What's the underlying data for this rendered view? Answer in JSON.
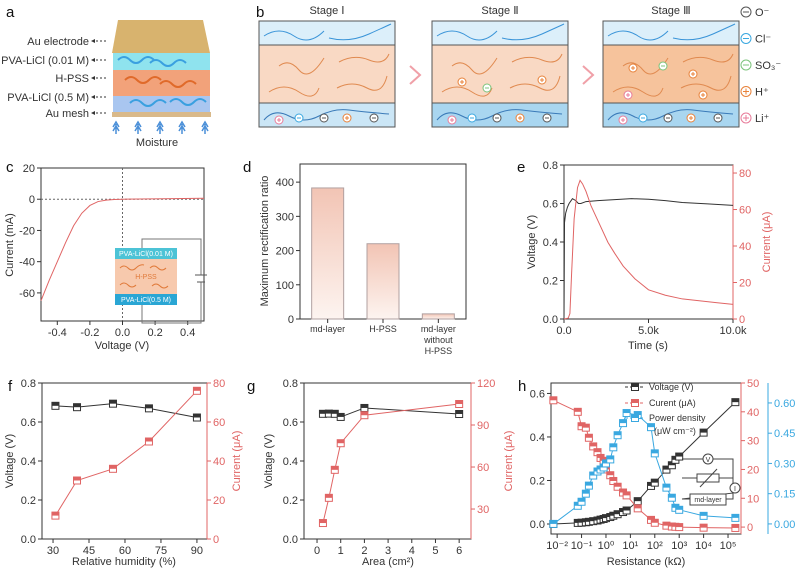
{
  "panel_labels": [
    "a",
    "b",
    "c",
    "d",
    "e",
    "f",
    "g",
    "h"
  ],
  "colors": {
    "voltage": "#333333",
    "current": "#e06464",
    "power": "#3aa8e0",
    "cyan": "#8fe3ee",
    "peach": "#f9d9c4",
    "blue": "#b9d8f2",
    "gold": "#d8b36e"
  },
  "panel_a": {
    "labels": [
      "Au electrode",
      "PVA-LiCl (0.01 M)",
      "H-PSS",
      "PVA-LiCl (0.5 M)",
      "Au mesh"
    ],
    "moisture": "Moisture"
  },
  "panel_b": {
    "stages": [
      "Stage Ⅰ",
      "Stage Ⅱ",
      "Stage Ⅲ"
    ],
    "legend": [
      {
        "label": "O⁻",
        "sign": "-",
        "color": "#555555"
      },
      {
        "label": "Cl⁻",
        "sign": "-",
        "color": "#3aa8e0"
      },
      {
        "label": "SO₃⁻",
        "sign": "-",
        "color": "#7cc47c"
      },
      {
        "label": "H⁺",
        "sign": "+",
        "color": "#e8823a"
      },
      {
        "label": "Li⁺",
        "sign": "+",
        "color": "#e87c9a"
      }
    ]
  },
  "chart_data": [
    {
      "panel": "c",
      "type": "line",
      "xlabel": "Voltage (V)",
      "ylabel": "Current (mA)",
      "xlim": [
        -0.5,
        0.5
      ],
      "ylim": [
        -78,
        20
      ],
      "xticks": [
        -0.4,
        -0.2,
        0,
        0.2,
        0.4
      ],
      "xtick_labels": [
        "-0.4",
        "-0.2",
        "0.0",
        "0.2",
        "0.4"
      ],
      "yticks": [
        20,
        0,
        -20,
        -40,
        -60
      ],
      "ytick_labels": [
        "20",
        "0",
        "-20",
        "-40",
        "-60"
      ],
      "series": [
        {
          "name": "I-V curve",
          "x": [
            -0.5,
            -0.45,
            -0.4,
            -0.35,
            -0.3,
            -0.25,
            -0.2,
            -0.15,
            -0.1,
            -0.05,
            0,
            0.25,
            0.5
          ],
          "y": [
            -65,
            -52,
            -40,
            -28,
            -17,
            -9,
            -4,
            -1.5,
            -0.6,
            -0.2,
            0,
            0.3,
            0.6
          ]
        }
      ],
      "inset_labels": [
        "PVA-LiCl(0.01 M)",
        "H-PSS",
        "PVA-LiCl(0.5 M)"
      ]
    },
    {
      "panel": "d",
      "type": "bar",
      "ylabel": "Maximum rectification ratio",
      "categories": [
        [
          "md-layer"
        ],
        [
          "H-PSS"
        ],
        [
          "md-layer",
          "without",
          "H-PSS"
        ]
      ],
      "values": [
        383,
        220,
        15
      ],
      "ylim": [
        0,
        453
      ],
      "yticks": [
        0,
        100,
        200,
        300,
        400
      ],
      "ytick_labels": [
        "0",
        "100",
        "200",
        "300",
        "400"
      ]
    },
    {
      "panel": "e",
      "type": "line",
      "xlabel": "Time (s)",
      "ylabel": "Voltage (V)",
      "ylabel_right": "Current (μA)",
      "xlim": [
        0,
        10000
      ],
      "ylim": [
        0,
        0.8
      ],
      "ylim_right": [
        0,
        84.4
      ],
      "xticks": [
        0,
        5000,
        10000
      ],
      "xtick_labels": [
        "0.0",
        "5.0k",
        "10.0k"
      ],
      "yticks": [
        0,
        0.2,
        0.4,
        0.6,
        0.8
      ],
      "ytick_labels": [
        "0.0",
        "0.2",
        "0.4",
        "0.6",
        "0.8"
      ],
      "yticks_right": [
        0,
        20,
        40,
        60,
        80
      ],
      "ytick_labels_right": [
        "0",
        "20",
        "40",
        "60",
        "80"
      ],
      "series": [
        {
          "name": "Voltage",
          "axis": "left",
          "x": [
            0,
            30,
            100,
            200,
            300,
            500,
            700,
            850,
            1000,
            1300,
            2000,
            3000,
            4000,
            5000,
            6000,
            7000,
            8500,
            10000
          ],
          "y": [
            0,
            0.5,
            0.55,
            0.58,
            0.6,
            0.625,
            0.615,
            0.6,
            0.6,
            0.61,
            0.615,
            0.62,
            0.625,
            0.622,
            0.615,
            0.605,
            0.598,
            0.59
          ]
        },
        {
          "name": "Current",
          "axis": "right",
          "x": [
            0,
            250,
            350,
            450,
            600,
            800,
            950,
            1100,
            1300,
            1600,
            2000,
            2600,
            3000,
            3500,
            4200,
            5000,
            6000,
            7000,
            8000,
            9000,
            10000
          ],
          "y": [
            0,
            0.5,
            3,
            25,
            55,
            72,
            76,
            74,
            70,
            62,
            54,
            42,
            36,
            29,
            22,
            16,
            13,
            11,
            10,
            9,
            8
          ]
        }
      ]
    },
    {
      "panel": "f",
      "type": "line",
      "xlabel": "Relative humidity (%)",
      "ylabel": "Voltage (V)",
      "ylabel_right": "Current (μA)",
      "xlim": [
        25.4,
        94.2
      ],
      "ylim": [
        0,
        0.8
      ],
      "ylim_right": [
        0,
        80
      ],
      "xticks": [
        30,
        45,
        60,
        75,
        90
      ],
      "xtick_labels": [
        "30",
        "45",
        "60",
        "75",
        "90"
      ],
      "yticks": [
        0,
        0.2,
        0.4,
        0.6,
        0.8
      ],
      "ytick_labels": [
        "0.0",
        "0.2",
        "0.4",
        "0.6",
        "0.8"
      ],
      "yticks_right": [
        0,
        20,
        40,
        60,
        80
      ],
      "ytick_labels_right": [
        "0",
        "20",
        "40",
        "60",
        "80"
      ],
      "series": [
        {
          "name": "Voltage",
          "axis": "left",
          "x": [
            31,
            40,
            55,
            70,
            90
          ],
          "y": [
            0.683,
            0.676,
            0.694,
            0.67,
            0.623
          ]
        },
        {
          "name": "Current",
          "axis": "right",
          "x": [
            31,
            40,
            55,
            70,
            90
          ],
          "y": [
            12,
            30,
            36,
            50,
            76
          ]
        }
      ]
    },
    {
      "panel": "g",
      "type": "line",
      "xlabel": "Area (cm²)",
      "ylabel": "Voltage (V)",
      "ylabel_right": "Current (μA)",
      "xlim": [
        -0.55,
        6.5
      ],
      "ylim": [
        0,
        0.8
      ],
      "ylim_right": [
        8.6,
        120
      ],
      "xticks": [
        0,
        1,
        2,
        3,
        4,
        5,
        6
      ],
      "xtick_labels": [
        "0",
        "1",
        "2",
        "3",
        "4",
        "5",
        "6"
      ],
      "yticks": [
        0,
        0.2,
        0.4,
        0.6,
        0.8
      ],
      "ytick_labels": [
        "0.0",
        "0.2",
        "0.4",
        "0.6",
        "0.8"
      ],
      "yticks_right": [
        30,
        60,
        90,
        120
      ],
      "ytick_labels_right": [
        "30",
        "60",
        "90",
        "120"
      ],
      "series": [
        {
          "name": "Voltage",
          "axis": "left",
          "x": [
            0.25,
            0.5,
            0.75,
            1,
            2,
            6
          ],
          "y": [
            0.642,
            0.643,
            0.642,
            0.626,
            0.672,
            0.641
          ]
        },
        {
          "name": "Current",
          "axis": "right",
          "x": [
            0.25,
            0.5,
            0.75,
            1,
            2,
            6
          ],
          "y": [
            20,
            38,
            58,
            77,
            97,
            105
          ]
        }
      ]
    },
    {
      "panel": "h",
      "type": "line",
      "xlabel": "Resistance (kΩ)",
      "xscale": "log",
      "xlim": [
        0.0056,
        340000
      ],
      "ylim": [
        -0.046,
        0.648
      ],
      "ylim_right": [
        -2.4,
        50
      ],
      "ylim_right2": [
        -0.05,
        0.699
      ],
      "xticks": [
        0.01,
        0.1,
        1,
        10,
        100,
        1000,
        10000,
        100000
      ],
      "xtick_labels": [
        "10⁻²",
        "10⁻¹",
        "10⁰",
        "10¹",
        "10²",
        "10³",
        "10⁴",
        "10⁵"
      ],
      "yticks": [
        0,
        0.2,
        0.4,
        0.6
      ],
      "ytick_labels": [
        "0.0",
        "0.2",
        "0.4",
        "0.6"
      ],
      "yticks_right": [
        0,
        10,
        20,
        30,
        40,
        50
      ],
      "ytick_labels_right": [
        "0",
        "10",
        "20",
        "30",
        "40",
        "50"
      ],
      "yticks_right2": [
        0,
        0.15,
        0.3,
        0.45,
        0.6
      ],
      "ytick_labels_right2": [
        "0.00",
        "0.15",
        "0.30",
        "0.45",
        "0.60"
      ],
      "legend": [
        "Voltage (V)",
        "Curent (μA)",
        "Power density",
        "(μW cm⁻²)"
      ],
      "inset_labels": [
        "V",
        "I",
        "md-layer"
      ],
      "series": [
        {
          "name": "Voltage (V)",
          "axis": "left",
          "x": [
            0.007,
            0.07,
            0.1,
            0.15,
            0.2,
            0.3,
            0.45,
            0.6,
            0.8,
            1,
            1.5,
            2,
            3,
            5,
            7,
            20,
            70,
            100,
            300,
            500,
            700,
            1000,
            10000,
            200000
          ],
          "y": [
            0,
            0.005,
            0.006,
            0.008,
            0.01,
            0.013,
            0.016,
            0.02,
            0.023,
            0.027,
            0.032,
            0.038,
            0.045,
            0.055,
            0.062,
            0.105,
            0.175,
            0.19,
            0.25,
            0.27,
            0.295,
            0.31,
            0.42,
            0.56
          ]
        },
        {
          "name": "Curent (μA)",
          "axis": "right",
          "x": [
            0.007,
            0.07,
            0.1,
            0.15,
            0.2,
            0.3,
            0.45,
            0.6,
            0.8,
            1,
            1.5,
            2,
            3,
            5,
            7,
            20,
            70,
            100,
            300,
            500,
            700,
            1000,
            10000,
            200000
          ],
          "y": [
            44,
            40,
            35,
            34.5,
            31,
            28,
            26,
            24,
            23,
            20,
            18,
            16,
            14,
            12,
            11,
            6.5,
            2.5,
            1.5,
            0.5,
            0.2,
            0.1,
            0,
            -0.2,
            -0.3
          ]
        },
        {
          "name": "Power density (μW cm⁻²)",
          "axis": "right2",
          "x": [
            0.007,
            0.07,
            0.1,
            0.15,
            0.2,
            0.3,
            0.45,
            0.6,
            0.8,
            1,
            1.5,
            2,
            3,
            5,
            7,
            20,
            70,
            100,
            300,
            500,
            700,
            1000,
            10000,
            200000
          ],
          "y": [
            0,
            0.09,
            0.11,
            0.15,
            0.19,
            0.24,
            0.26,
            0.27,
            0.28,
            0.3,
            0.32,
            0.38,
            0.44,
            0.5,
            0.55,
            0.54,
            0.48,
            0.35,
            0.18,
            0.13,
            0.08,
            0.07,
            0.04,
            0.03
          ]
        }
      ]
    }
  ]
}
